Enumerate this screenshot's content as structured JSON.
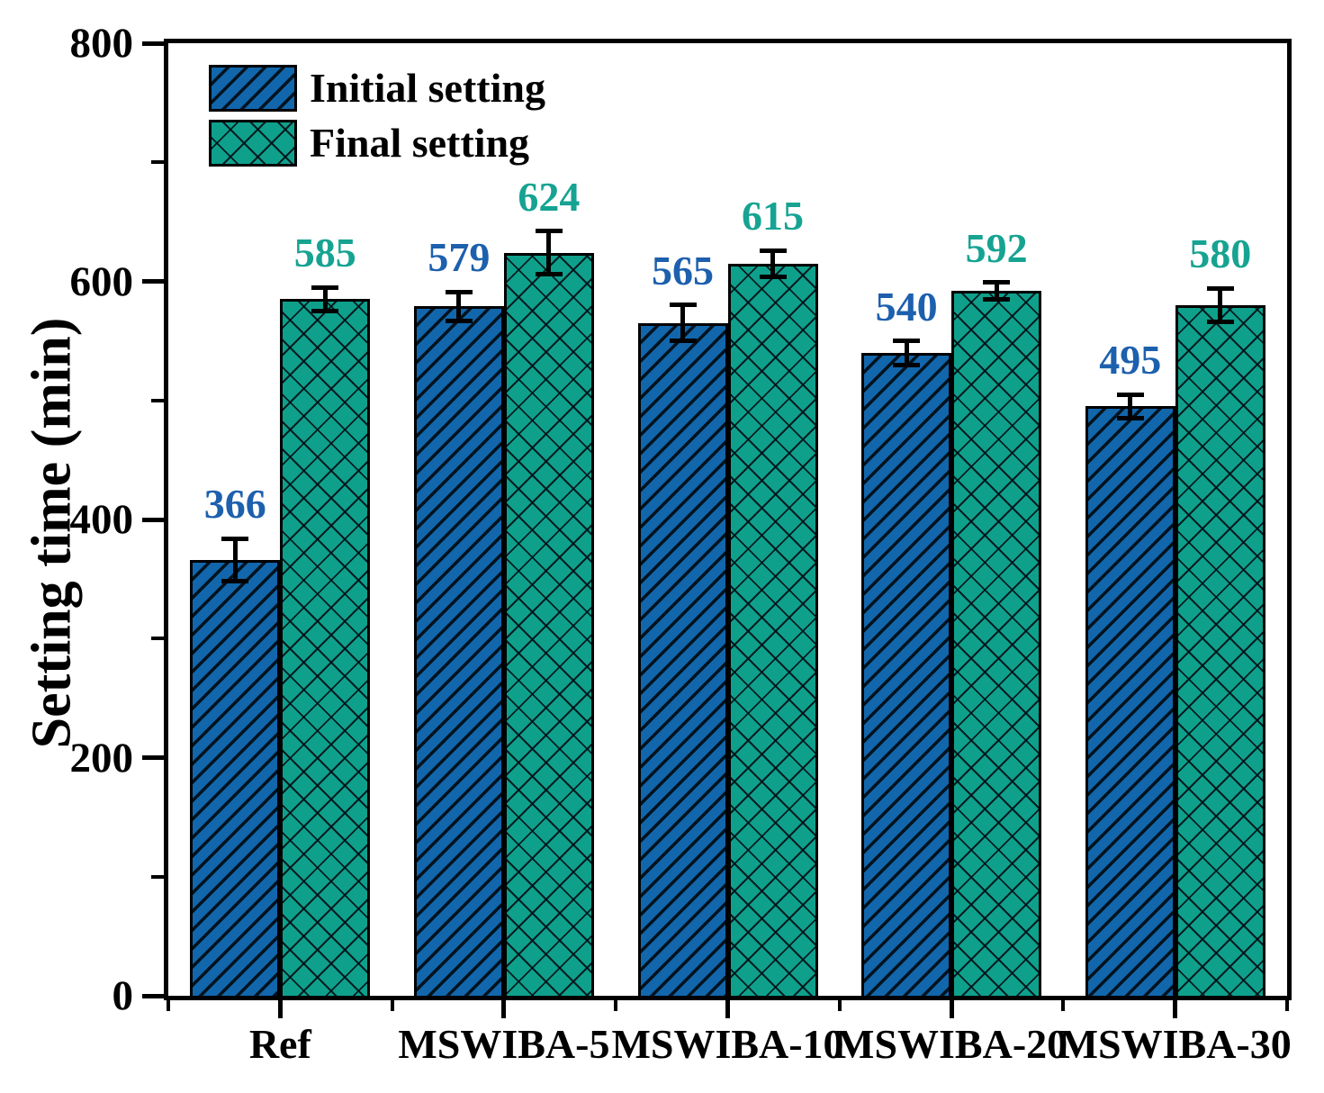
{
  "chart_data": {
    "type": "bar",
    "title": "",
    "xlabel": "",
    "ylabel": "Setting time (min)",
    "ylim": [
      0,
      800
    ],
    "yticks_major": [
      0,
      200,
      400,
      600,
      800
    ],
    "yticks_minor": [
      100,
      300,
      500,
      700
    ],
    "categories": [
      "Ref",
      "MSWIBA-5",
      "MSWIBA-10",
      "MSWIBA-20",
      "MSWIBA-30"
    ],
    "series": [
      {
        "name": "Initial setting",
        "values": [
          366,
          579,
          565,
          540,
          495
        ],
        "errors": [
          18,
          12,
          15,
          10,
          10
        ],
        "fill": "#1266ab",
        "hatch": "diagonal",
        "label_color": "#1d60ad"
      },
      {
        "name": "Final setting",
        "values": [
          585,
          624,
          615,
          592,
          580
        ],
        "errors": [
          10,
          18,
          11,
          7,
          14
        ],
        "fill": "#0fa08c",
        "hatch": "cross",
        "label_color": "#16a392"
      }
    ],
    "grid": false,
    "error_bars": true,
    "bar_value_labels": true,
    "legend_position": "top-left",
    "colors": {
      "axis": "#000000",
      "background": "#ffffff",
      "hatch_line": "#01131f"
    }
  }
}
